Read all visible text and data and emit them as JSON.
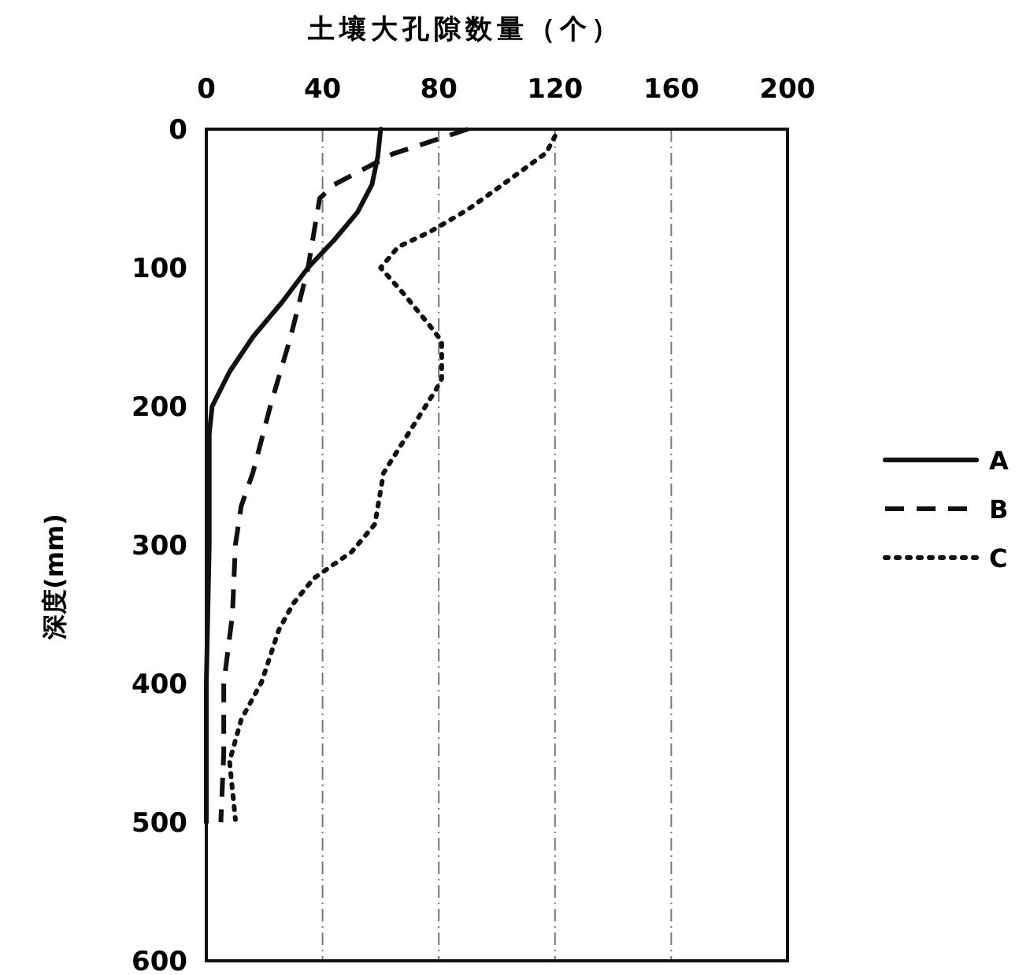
{
  "chart_data": {
    "type": "line",
    "xlabel": "土壤大孔隙数量（个）",
    "ylabel": "深度(mm)",
    "xlim": [
      0,
      200
    ],
    "xticks": [
      0,
      40,
      80,
      120,
      160,
      200
    ],
    "ylim": [
      600,
      0
    ],
    "yticks": [
      0,
      100,
      200,
      300,
      400,
      500,
      600
    ],
    "grid": "x",
    "legend": "right",
    "marker": "none",
    "series": [
      {
        "name": "A",
        "color": "#111111",
        "line_style": "solid",
        "x": [
          60,
          59,
          57,
          52,
          44,
          35,
          26,
          16,
          8,
          2,
          1,
          1,
          0,
          0
        ],
        "values": [
          0,
          20,
          40,
          60,
          80,
          100,
          125,
          150,
          175,
          200,
          220,
          300,
          400,
          500
        ]
      },
      {
        "name": "B",
        "color": "#111111",
        "line_style": "dashed",
        "x": [
          90,
          64,
          44,
          39,
          37,
          35,
          29,
          22,
          16,
          12,
          10,
          9,
          6,
          6,
          5
        ],
        "values": [
          0,
          18,
          40,
          50,
          75,
          100,
          150,
          200,
          248,
          272,
          300,
          350,
          400,
          450,
          500
        ]
      },
      {
        "name": "C",
        "color": "#111111",
        "line_style": "dotted",
        "x": [
          120,
          117,
          102,
          90,
          77,
          66,
          60,
          68,
          77,
          81,
          81,
          79,
          70,
          61,
          58,
          50,
          37,
          30,
          25,
          19,
          12,
          8,
          10
        ],
        "values": [
          5,
          17,
          40,
          58,
          74,
          85,
          100,
          119,
          142,
          153,
          180,
          188,
          218,
          248,
          285,
          305,
          324,
          342,
          361,
          399,
          426,
          456,
          498
        ]
      }
    ]
  }
}
